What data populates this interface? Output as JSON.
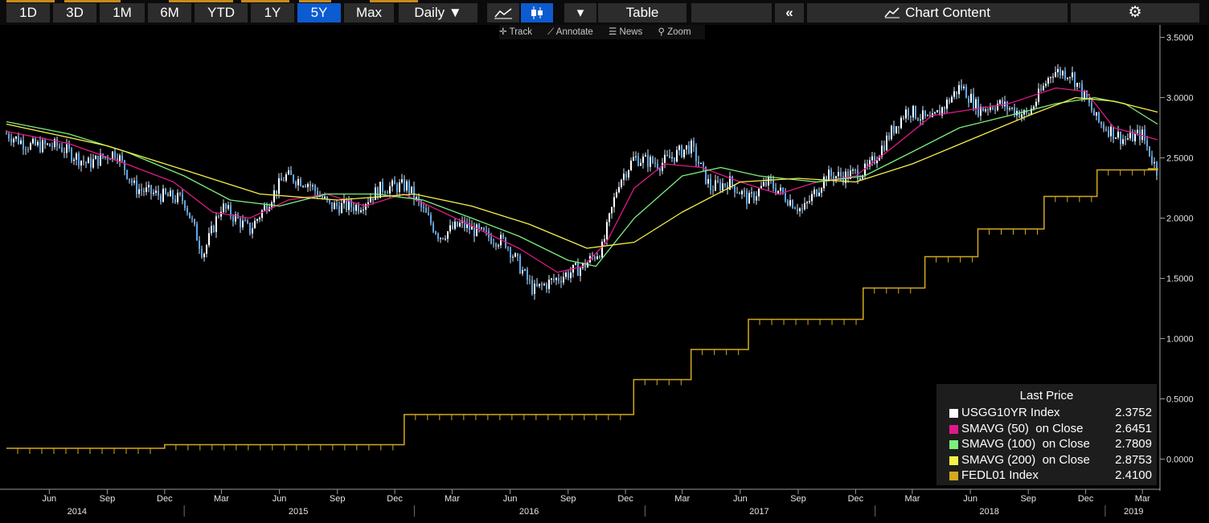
{
  "toolbar": {
    "periods": [
      "1D",
      "3D",
      "1M",
      "6M",
      "YTD",
      "1Y",
      "5Y",
      "Max"
    ],
    "active_period": "5Y",
    "frequency": "Daily ▼",
    "line_icon": "line-chart-icon",
    "candle_icon": "candlestick-icon",
    "dropdown": "▾",
    "table_label": "Table",
    "collapse_icon": "«",
    "chart_content_label": "Chart Content",
    "chart_content_icon": "chart-content-icon",
    "settings_icon": "gear-icon"
  },
  "chart_tools": {
    "track": "Track",
    "annotate": "Annotate",
    "news": "News",
    "zoom": "Zoom"
  },
  "legend": {
    "title": "Last Price",
    "items": [
      {
        "name": "USGG10YR Index",
        "value": "2.3752",
        "color": "#ffffff"
      },
      {
        "name": "SMAVG (50)  on Close",
        "value": "2.6451",
        "color": "#e0198a"
      },
      {
        "name": "SMAVG (100)  on Close",
        "value": "2.7809",
        "color": "#7cf07c"
      },
      {
        "name": "SMAVG (200)  on Close",
        "value": "2.8753",
        "color": "#f5f04a"
      },
      {
        "name": "FEDL01 Index",
        "value": "2.4100",
        "color": "#d4a91c"
      }
    ]
  },
  "chart_data": {
    "type": "line",
    "y_ticks": [
      "3.5000",
      "3.0000",
      "2.5000",
      "2.0000",
      "1.5000",
      "1.0000",
      "0.5000",
      "0.0000"
    ],
    "y_tick_values": [
      3.5,
      3.0,
      2.5,
      2.0,
      1.5,
      1.0,
      0.5,
      0.0
    ],
    "ylim": [
      -0.25,
      3.55
    ],
    "xlim": [
      "2014-03-25",
      "2019-03-25"
    ],
    "month_ticks": [
      {
        "label": "Jun",
        "date": "2014-06-01"
      },
      {
        "label": "Sep",
        "date": "2014-09-01"
      },
      {
        "label": "Dec",
        "date": "2014-12-01"
      },
      {
        "label": "Mar",
        "date": "2015-03-01"
      },
      {
        "label": "Jun",
        "date": "2015-06-01"
      },
      {
        "label": "Sep",
        "date": "2015-09-01"
      },
      {
        "label": "Dec",
        "date": "2015-12-01"
      },
      {
        "label": "Mar",
        "date": "2016-03-01"
      },
      {
        "label": "Jun",
        "date": "2016-06-01"
      },
      {
        "label": "Sep",
        "date": "2016-09-01"
      },
      {
        "label": "Dec",
        "date": "2016-12-01"
      },
      {
        "label": "Mar",
        "date": "2017-03-01"
      },
      {
        "label": "Jun",
        "date": "2017-06-01"
      },
      {
        "label": "Sep",
        "date": "2017-09-01"
      },
      {
        "label": "Dec",
        "date": "2017-12-01"
      },
      {
        "label": "Mar",
        "date": "2018-03-01"
      },
      {
        "label": "Jun",
        "date": "2018-06-01"
      },
      {
        "label": "Sep",
        "date": "2018-09-01"
      },
      {
        "label": "Dec",
        "date": "2018-12-01"
      },
      {
        "label": "Mar",
        "date": "2019-03-01"
      }
    ],
    "year_labels": [
      {
        "label": "2014",
        "date": "2014-07-15"
      },
      {
        "label": "2015",
        "date": "2015-07-01"
      },
      {
        "label": "2016",
        "date": "2016-07-01"
      },
      {
        "label": "2017",
        "date": "2017-07-01"
      },
      {
        "label": "2018",
        "date": "2018-07-01"
      },
      {
        "label": "2019",
        "date": "2019-02-15"
      }
    ],
    "year_dividers": [
      "2015-01-01",
      "2016-01-01",
      "2017-01-01",
      "2018-01-01",
      "2019-01-01"
    ],
    "series": [
      {
        "name": "USGG10YR Index",
        "color": "#5aa8f0",
        "kind": "candle",
        "x": [
          "2014-03-25",
          "2014-05-01",
          "2014-06-15",
          "2014-08-01",
          "2014-09-15",
          "2014-10-15",
          "2014-11-15",
          "2015-01-01",
          "2015-01-31",
          "2015-03-01",
          "2015-04-15",
          "2015-06-10",
          "2015-07-15",
          "2015-08-20",
          "2015-10-05",
          "2015-11-10",
          "2015-12-20",
          "2016-02-10",
          "2016-03-15",
          "2016-04-25",
          "2016-05-25",
          "2016-07-08",
          "2016-08-15",
          "2016-09-25",
          "2016-10-25",
          "2016-11-20",
          "2016-12-15",
          "2017-01-25",
          "2017-03-14",
          "2017-04-15",
          "2017-05-15",
          "2017-06-15",
          "2017-07-15",
          "2017-09-08",
          "2017-10-15",
          "2017-11-15",
          "2017-12-20",
          "2018-01-31",
          "2018-02-21",
          "2018-03-31",
          "2018-05-17",
          "2018-06-15",
          "2018-07-15",
          "2018-08-31",
          "2018-10-09",
          "2018-11-08",
          "2018-12-05",
          "2018-12-20",
          "2019-01-31",
          "2019-02-28",
          "2019-03-25"
        ],
        "y": [
          2.7,
          2.6,
          2.6,
          2.45,
          2.55,
          2.25,
          2.2,
          2.15,
          1.7,
          2.1,
          1.9,
          2.35,
          2.3,
          2.1,
          2.1,
          2.25,
          2.27,
          1.85,
          1.95,
          1.85,
          1.8,
          1.4,
          1.5,
          1.6,
          1.75,
          2.3,
          2.5,
          2.45,
          2.6,
          2.25,
          2.3,
          2.15,
          2.3,
          2.06,
          2.35,
          2.35,
          2.4,
          2.75,
          2.9,
          2.8,
          3.1,
          2.9,
          2.95,
          2.85,
          3.22,
          3.2,
          2.95,
          2.8,
          2.65,
          2.7,
          2.38
        ]
      },
      {
        "name": "SMAVG (50) on Close",
        "color": "#e0198a",
        "kind": "line",
        "x": [
          "2014-03-25",
          "2014-07-01",
          "2014-10-01",
          "2014-12-15",
          "2015-02-15",
          "2015-04-15",
          "2015-06-15",
          "2015-08-15",
          "2015-10-15",
          "2015-12-15",
          "2016-02-15",
          "2016-04-15",
          "2016-06-15",
          "2016-08-15",
          "2016-09-25",
          "2016-11-01",
          "2016-12-15",
          "2017-02-01",
          "2017-04-01",
          "2017-06-01",
          "2017-08-01",
          "2017-10-01",
          "2017-12-01",
          "2018-02-01",
          "2018-04-01",
          "2018-06-01",
          "2018-08-01",
          "2018-10-15",
          "2018-12-01",
          "2019-01-15",
          "2019-03-25"
        ],
        "y": [
          2.72,
          2.62,
          2.45,
          2.3,
          2.05,
          2.0,
          2.15,
          2.2,
          2.1,
          2.2,
          2.05,
          1.9,
          1.75,
          1.55,
          1.6,
          1.8,
          2.25,
          2.45,
          2.42,
          2.3,
          2.2,
          2.3,
          2.35,
          2.6,
          2.85,
          2.9,
          2.95,
          3.08,
          3.05,
          2.75,
          2.65
        ]
      },
      {
        "name": "SMAVG (100) on Close",
        "color": "#7cf07c",
        "kind": "line",
        "x": [
          "2014-03-25",
          "2014-07-01",
          "2014-10-01",
          "2015-01-01",
          "2015-03-15",
          "2015-06-01",
          "2015-08-15",
          "2015-11-01",
          "2016-01-15",
          "2016-04-01",
          "2016-06-15",
          "2016-09-01",
          "2016-10-15",
          "2016-12-15",
          "2017-03-01",
          "2017-05-01",
          "2017-07-01",
          "2017-10-01",
          "2017-12-15",
          "2018-03-01",
          "2018-05-15",
          "2018-08-01",
          "2018-10-15",
          "2018-12-15",
          "2019-02-01",
          "2019-03-25"
        ],
        "y": [
          2.8,
          2.7,
          2.55,
          2.35,
          2.15,
          2.1,
          2.2,
          2.2,
          2.15,
          2.0,
          1.85,
          1.65,
          1.6,
          2.0,
          2.35,
          2.42,
          2.35,
          2.3,
          2.35,
          2.55,
          2.75,
          2.85,
          2.95,
          3.0,
          2.95,
          2.78
        ]
      },
      {
        "name": "SMAVG (200) on Close",
        "color": "#f5f04a",
        "kind": "line",
        "x": [
          "2014-03-25",
          "2014-09-01",
          "2015-01-01",
          "2015-05-01",
          "2015-09-01",
          "2016-01-01",
          "2016-04-01",
          "2016-07-01",
          "2016-10-01",
          "2016-12-15",
          "2017-03-01",
          "2017-06-01",
          "2017-09-01",
          "2017-12-01",
          "2018-03-01",
          "2018-06-01",
          "2018-09-01",
          "2018-11-15",
          "2019-01-15",
          "2019-03-25"
        ],
        "y": [
          2.78,
          2.6,
          2.4,
          2.2,
          2.15,
          2.2,
          2.1,
          1.95,
          1.75,
          1.8,
          2.05,
          2.3,
          2.33,
          2.3,
          2.45,
          2.65,
          2.85,
          3.0,
          2.97,
          2.88
        ]
      },
      {
        "name": "FEDL01 Index",
        "color": "#d4a91c",
        "kind": "step",
        "x": [
          "2014-03-25",
          "2014-12-01",
          "2015-12-16",
          "2016-12-14",
          "2017-03-15",
          "2017-06-14",
          "2017-12-13",
          "2018-03-21",
          "2018-06-13",
          "2018-09-26",
          "2018-12-19",
          "2019-03-25"
        ],
        "y": [
          0.09,
          0.12,
          0.37,
          0.66,
          0.91,
          1.16,
          1.42,
          1.68,
          1.91,
          2.18,
          2.4,
          2.41
        ]
      }
    ]
  }
}
